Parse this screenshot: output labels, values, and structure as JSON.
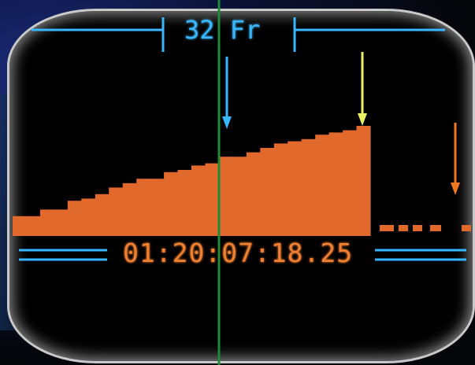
{
  "display": {
    "frame_count_label": "32 Fr",
    "timecode": "01:20:07:18.25"
  },
  "chart_data": {
    "type": "bar",
    "values": [
      18,
      18,
      24,
      24,
      32,
      34,
      38,
      44,
      48,
      52,
      52,
      58,
      60,
      64,
      66,
      72,
      72,
      76,
      80,
      84,
      86,
      88,
      92,
      94,
      96,
      100
    ],
    "colors": {
      "bars": "#e2692c",
      "markers": "#38b6ff",
      "center_line": "#1e8a3a"
    }
  },
  "colors": {
    "timecode": "#f08030",
    "guide": "#38b6ff",
    "arrow_left": "#38b6ff",
    "arrow_mid": "#e8f060",
    "arrow_right": "#f07a20"
  }
}
